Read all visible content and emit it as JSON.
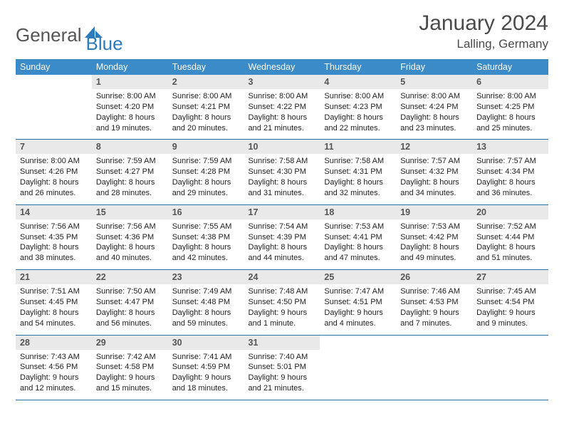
{
  "logo": {
    "text1": "General",
    "text2": "Blue"
  },
  "title": "January 2024",
  "location": "Lalling, Germany",
  "colors": {
    "header_bg": "#3b8bc8",
    "header_fg": "#ffffff",
    "daynum_bg": "#e9e9e9",
    "row_border": "#2b6fa8",
    "logo_gray": "#555555",
    "logo_blue": "#2b7bbd"
  },
  "weekdays": [
    "Sunday",
    "Monday",
    "Tuesday",
    "Wednesday",
    "Thursday",
    "Friday",
    "Saturday"
  ],
  "weeks": [
    [
      {
        "day": "",
        "sunrise": "",
        "sunset": "",
        "daylight": ""
      },
      {
        "day": "1",
        "sunrise": "Sunrise: 8:00 AM",
        "sunset": "Sunset: 4:20 PM",
        "daylight": "Daylight: 8 hours and 19 minutes."
      },
      {
        "day": "2",
        "sunrise": "Sunrise: 8:00 AM",
        "sunset": "Sunset: 4:21 PM",
        "daylight": "Daylight: 8 hours and 20 minutes."
      },
      {
        "day": "3",
        "sunrise": "Sunrise: 8:00 AM",
        "sunset": "Sunset: 4:22 PM",
        "daylight": "Daylight: 8 hours and 21 minutes."
      },
      {
        "day": "4",
        "sunrise": "Sunrise: 8:00 AM",
        "sunset": "Sunset: 4:23 PM",
        "daylight": "Daylight: 8 hours and 22 minutes."
      },
      {
        "day": "5",
        "sunrise": "Sunrise: 8:00 AM",
        "sunset": "Sunset: 4:24 PM",
        "daylight": "Daylight: 8 hours and 23 minutes."
      },
      {
        "day": "6",
        "sunrise": "Sunrise: 8:00 AM",
        "sunset": "Sunset: 4:25 PM",
        "daylight": "Daylight: 8 hours and 25 minutes."
      }
    ],
    [
      {
        "day": "7",
        "sunrise": "Sunrise: 8:00 AM",
        "sunset": "Sunset: 4:26 PM",
        "daylight": "Daylight: 8 hours and 26 minutes."
      },
      {
        "day": "8",
        "sunrise": "Sunrise: 7:59 AM",
        "sunset": "Sunset: 4:27 PM",
        "daylight": "Daylight: 8 hours and 28 minutes."
      },
      {
        "day": "9",
        "sunrise": "Sunrise: 7:59 AM",
        "sunset": "Sunset: 4:28 PM",
        "daylight": "Daylight: 8 hours and 29 minutes."
      },
      {
        "day": "10",
        "sunrise": "Sunrise: 7:58 AM",
        "sunset": "Sunset: 4:30 PM",
        "daylight": "Daylight: 8 hours and 31 minutes."
      },
      {
        "day": "11",
        "sunrise": "Sunrise: 7:58 AM",
        "sunset": "Sunset: 4:31 PM",
        "daylight": "Daylight: 8 hours and 32 minutes."
      },
      {
        "day": "12",
        "sunrise": "Sunrise: 7:57 AM",
        "sunset": "Sunset: 4:32 PM",
        "daylight": "Daylight: 8 hours and 34 minutes."
      },
      {
        "day": "13",
        "sunrise": "Sunrise: 7:57 AM",
        "sunset": "Sunset: 4:34 PM",
        "daylight": "Daylight: 8 hours and 36 minutes."
      }
    ],
    [
      {
        "day": "14",
        "sunrise": "Sunrise: 7:56 AM",
        "sunset": "Sunset: 4:35 PM",
        "daylight": "Daylight: 8 hours and 38 minutes."
      },
      {
        "day": "15",
        "sunrise": "Sunrise: 7:56 AM",
        "sunset": "Sunset: 4:36 PM",
        "daylight": "Daylight: 8 hours and 40 minutes."
      },
      {
        "day": "16",
        "sunrise": "Sunrise: 7:55 AM",
        "sunset": "Sunset: 4:38 PM",
        "daylight": "Daylight: 8 hours and 42 minutes."
      },
      {
        "day": "17",
        "sunrise": "Sunrise: 7:54 AM",
        "sunset": "Sunset: 4:39 PM",
        "daylight": "Daylight: 8 hours and 44 minutes."
      },
      {
        "day": "18",
        "sunrise": "Sunrise: 7:53 AM",
        "sunset": "Sunset: 4:41 PM",
        "daylight": "Daylight: 8 hours and 47 minutes."
      },
      {
        "day": "19",
        "sunrise": "Sunrise: 7:53 AM",
        "sunset": "Sunset: 4:42 PM",
        "daylight": "Daylight: 8 hours and 49 minutes."
      },
      {
        "day": "20",
        "sunrise": "Sunrise: 7:52 AM",
        "sunset": "Sunset: 4:44 PM",
        "daylight": "Daylight: 8 hours and 51 minutes."
      }
    ],
    [
      {
        "day": "21",
        "sunrise": "Sunrise: 7:51 AM",
        "sunset": "Sunset: 4:45 PM",
        "daylight": "Daylight: 8 hours and 54 minutes."
      },
      {
        "day": "22",
        "sunrise": "Sunrise: 7:50 AM",
        "sunset": "Sunset: 4:47 PM",
        "daylight": "Daylight: 8 hours and 56 minutes."
      },
      {
        "day": "23",
        "sunrise": "Sunrise: 7:49 AM",
        "sunset": "Sunset: 4:48 PM",
        "daylight": "Daylight: 8 hours and 59 minutes."
      },
      {
        "day": "24",
        "sunrise": "Sunrise: 7:48 AM",
        "sunset": "Sunset: 4:50 PM",
        "daylight": "Daylight: 9 hours and 1 minute."
      },
      {
        "day": "25",
        "sunrise": "Sunrise: 7:47 AM",
        "sunset": "Sunset: 4:51 PM",
        "daylight": "Daylight: 9 hours and 4 minutes."
      },
      {
        "day": "26",
        "sunrise": "Sunrise: 7:46 AM",
        "sunset": "Sunset: 4:53 PM",
        "daylight": "Daylight: 9 hours and 7 minutes."
      },
      {
        "day": "27",
        "sunrise": "Sunrise: 7:45 AM",
        "sunset": "Sunset: 4:54 PM",
        "daylight": "Daylight: 9 hours and 9 minutes."
      }
    ],
    [
      {
        "day": "28",
        "sunrise": "Sunrise: 7:43 AM",
        "sunset": "Sunset: 4:56 PM",
        "daylight": "Daylight: 9 hours and 12 minutes."
      },
      {
        "day": "29",
        "sunrise": "Sunrise: 7:42 AM",
        "sunset": "Sunset: 4:58 PM",
        "daylight": "Daylight: 9 hours and 15 minutes."
      },
      {
        "day": "30",
        "sunrise": "Sunrise: 7:41 AM",
        "sunset": "Sunset: 4:59 PM",
        "daylight": "Daylight: 9 hours and 18 minutes."
      },
      {
        "day": "31",
        "sunrise": "Sunrise: 7:40 AM",
        "sunset": "Sunset: 5:01 PM",
        "daylight": "Daylight: 9 hours and 21 minutes."
      },
      {
        "day": "",
        "sunrise": "",
        "sunset": "",
        "daylight": ""
      },
      {
        "day": "",
        "sunrise": "",
        "sunset": "",
        "daylight": ""
      },
      {
        "day": "",
        "sunrise": "",
        "sunset": "",
        "daylight": ""
      }
    ]
  ]
}
